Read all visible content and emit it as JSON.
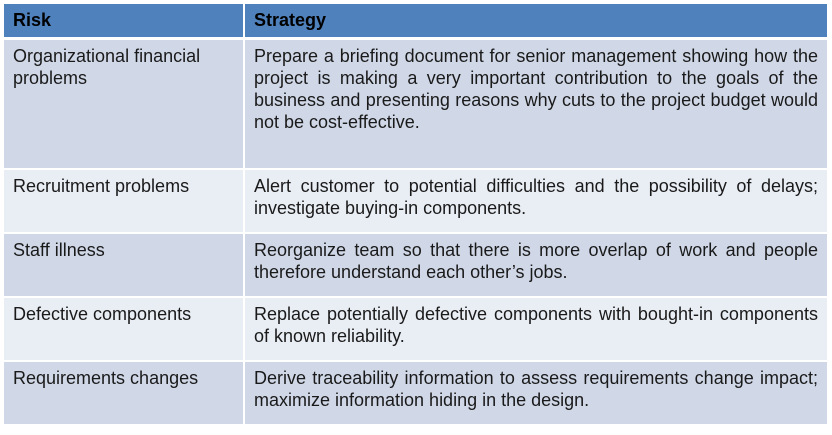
{
  "table": {
    "headers": {
      "risk": "Risk",
      "strategy": "Strategy"
    },
    "rows": [
      {
        "risk": "Organizational financial problems",
        "strategy": "Prepare a briefing document for senior management showing how the project is making a very important contribution to the goals of the business and presenting reasons why cuts to the project budget would not be cost-effective."
      },
      {
        "risk": "Recruitment problems",
        "strategy": "Alert customer to potential difficulties and the possibility of delays; investigate buying-in components."
      },
      {
        "risk": "Staff illness",
        "strategy": "Reorganize team so that there is more overlap of work and people therefore understand each other’s jobs."
      },
      {
        "risk": "Defective components",
        "strategy": "Replace potentially defective components with bought-in components of known reliability."
      },
      {
        "risk": "Requirements changes",
        "strategy": "Derive traceability information to assess requirements change impact; maximize information hiding in the design."
      }
    ]
  },
  "colors": {
    "header_bg": "#4f81bd",
    "row_odd_bg": "#d0d8e8",
    "row_even_bg": "#e9edf4"
  }
}
